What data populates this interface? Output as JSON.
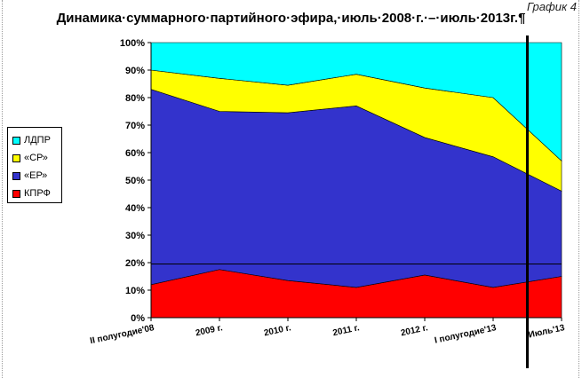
{
  "corner_label": "График 4",
  "chart_data": {
    "type": "area",
    "stacked": true,
    "title": "Динамика·суммарного·партийного·эфира,·июль·2008·г.·–·июль·2013г.¶",
    "categories": [
      "II полугодие'08",
      "2009 г.",
      "2010 г.",
      "2011 г.",
      "2012 г.",
      "I полугодие'13",
      "Июль'13"
    ],
    "ylim": [
      0,
      100
    ],
    "y_ticks": [
      "0%",
      "10%",
      "20%",
      "30%",
      "40%",
      "50%",
      "60%",
      "70%",
      "80%",
      "90%",
      "100%"
    ],
    "series": [
      {
        "name": "КПРФ",
        "color": "#ff0000",
        "values": [
          12,
          17.5,
          13.5,
          11,
          15.5,
          11,
          15
        ]
      },
      {
        "name": "«ЕР»",
        "color": "#3333cc",
        "values": [
          71,
          57.5,
          61,
          66,
          50,
          47.5,
          31
        ]
      },
      {
        "name": "«СР»",
        "color": "#ffff00",
        "values": [
          7,
          12,
          10,
          11.5,
          18,
          21.5,
          11
        ]
      },
      {
        "name": "ЛДПР",
        "color": "#00ffff",
        "values": [
          10,
          13,
          15.5,
          11.5,
          16.5,
          20,
          43
        ]
      }
    ],
    "reference_line_y": 19.5,
    "marker_line_x": 5.5,
    "legend_position": "left",
    "grid": false
  }
}
